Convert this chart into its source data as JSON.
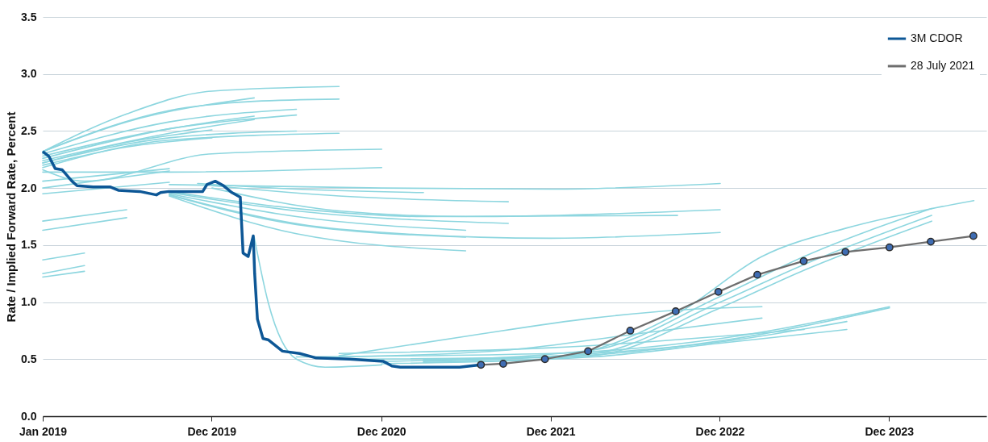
{
  "chart_data": {
    "type": "line",
    "ylabel": "Rate / Implied Forward Rate, Percent",
    "xlim": [
      "2019-01-01",
      "2024-07-28"
    ],
    "xticks": [
      {
        "value": "2019-01-01",
        "label": "Jan 2019"
      },
      {
        "value": "2019-12-31",
        "label": "Dec 2019"
      },
      {
        "value": "2020-12-31",
        "label": "Dec 2020"
      },
      {
        "value": "2021-12-31",
        "label": "Dec 2021"
      },
      {
        "value": "2022-12-31",
        "label": "Dec 2022"
      },
      {
        "value": "2023-12-31",
        "label": "Dec 2023"
      }
    ],
    "ylim": [
      0,
      3.5
    ],
    "yticks": [
      {
        "value": 0,
        "label": "0.0"
      },
      0.5,
      {
        "value": 1,
        "label": "1.0"
      },
      1.5,
      {
        "value": 2,
        "label": "2.0"
      },
      2.5,
      {
        "value": 3,
        "label": "3.0"
      },
      3.5
    ],
    "grid": "y",
    "legend": "top right",
    "series": [
      {
        "color": "#8dd6df",
        "marker": "none",
        "x": [
          "2019-01",
          "2019-07",
          "2020-01",
          "2020-10"
        ],
        "values": [
          2.32,
          2.65,
          2.85,
          2.89
        ]
      },
      {
        "color": "#8dd6df",
        "marker": "none",
        "x": [
          "2019-01",
          "2019-10",
          "2020-04",
          "2020-10"
        ],
        "values": [
          2.32,
          2.68,
          2.76,
          2.78
        ]
      },
      {
        "color": "#8dd6df",
        "marker": "none",
        "x": [
          "2019-01",
          "2019-07",
          "2020-04"
        ],
        "values": [
          2.32,
          2.58,
          2.79
        ]
      },
      {
        "color": "#8dd6df",
        "marker": "none",
        "x": [
          "2019-01",
          "2019-10",
          "2020-07"
        ],
        "values": [
          2.3,
          2.58,
          2.69
        ]
      },
      {
        "color": "#8dd6df",
        "marker": "none",
        "x": [
          "2019-01",
          "2019-10",
          "2020-07"
        ],
        "values": [
          2.28,
          2.52,
          2.64
        ]
      },
      {
        "color": "#8dd6df",
        "marker": "none",
        "x": [
          "2019-01",
          "2019-10",
          "2020-04"
        ],
        "values": [
          2.26,
          2.52,
          2.63
        ]
      },
      {
        "color": "#8dd6df",
        "marker": "none",
        "x": [
          "2019-01",
          "2019-10",
          "2020-04"
        ],
        "values": [
          2.24,
          2.48,
          2.6
        ]
      },
      {
        "color": "#8dd6df",
        "marker": "none",
        "x": [
          "2019-01",
          "2019-07",
          "2020-01"
        ],
        "values": [
          2.22,
          2.4,
          2.51
        ]
      },
      {
        "color": "#8dd6df",
        "marker": "none",
        "x": [
          "2019-01",
          "2019-07",
          "2020-01"
        ],
        "values": [
          2.2,
          2.36,
          2.44
        ]
      },
      {
        "color": "#8dd6df",
        "marker": "none",
        "x": [
          "2019-01",
          "2019-10",
          "2020-07"
        ],
        "values": [
          2.22,
          2.44,
          2.5
        ]
      },
      {
        "color": "#8dd6df",
        "marker": "none",
        "x": [
          "2019-01",
          "2019-10",
          "2020-10"
        ],
        "values": [
          2.18,
          2.42,
          2.48
        ]
      },
      {
        "color": "#8dd6df",
        "marker": "none",
        "x": [
          "2019-01",
          "2019-04",
          "2020-01",
          "2021-01"
        ],
        "values": [
          2.16,
          2.06,
          2.3,
          2.34
        ]
      },
      {
        "color": "#8dd6df",
        "marker": "none",
        "x": [
          "2019-01",
          "2019-10",
          "2021-01"
        ],
        "values": [
          2.14,
          2.14,
          2.18
        ]
      },
      {
        "color": "#8dd6df",
        "marker": "none",
        "x": [
          "2019-01",
          "2019-10"
        ],
        "values": [
          2.06,
          2.17
        ]
      },
      {
        "color": "#8dd6df",
        "marker": "none",
        "x": [
          "2019-01",
          "2019-10"
        ],
        "values": [
          2.0,
          2.15
        ]
      },
      {
        "color": "#8dd6df",
        "marker": "none",
        "x": [
          "2019-01",
          "2019-10"
        ],
        "values": [
          1.95,
          2.05
        ]
      },
      {
        "color": "#8dd6df",
        "marker": "none",
        "x": [
          "2019-01",
          "2019-07"
        ],
        "values": [
          1.71,
          1.81
        ]
      },
      {
        "color": "#8dd6df",
        "marker": "none",
        "x": [
          "2019-01",
          "2019-07"
        ],
        "values": [
          1.63,
          1.74
        ]
      },
      {
        "color": "#8dd6df",
        "marker": "none",
        "x": [
          "2019-01",
          "2019-04"
        ],
        "values": [
          1.37,
          1.43
        ]
      },
      {
        "color": "#8dd6df",
        "marker": "none",
        "x": [
          "2019-01",
          "2019-04"
        ],
        "values": [
          1.25,
          1.32
        ]
      },
      {
        "color": "#8dd6df",
        "marker": "none",
        "x": [
          "2019-01",
          "2019-04"
        ],
        "values": [
          1.22,
          1.27
        ]
      },
      {
        "color": "#8dd6df",
        "marker": "none",
        "x": [
          "2019-10",
          "2021-01",
          "2022-01",
          "2023-01"
        ],
        "values": [
          2.03,
          2.0,
          1.99,
          2.04
        ]
      },
      {
        "color": "#8dd6df",
        "marker": "none",
        "x": [
          "2019-12",
          "2020-07",
          "2021-04"
        ],
        "values": [
          2.04,
          1.99,
          1.96
        ]
      },
      {
        "color": "#8dd6df",
        "marker": "none",
        "x": [
          "2020-01",
          "2020-10",
          "2021-10"
        ],
        "values": [
          2.02,
          1.93,
          1.88
        ]
      },
      {
        "color": "#8dd6df",
        "marker": "none",
        "x": [
          "2020-01",
          "2020-10",
          "2021-07",
          "2023-01"
        ],
        "values": [
          2.0,
          1.8,
          1.75,
          1.81
        ]
      },
      {
        "color": "#8dd6df",
        "marker": "none",
        "x": [
          "2019-10",
          "2020-07",
          "2021-04",
          "2022-10"
        ],
        "values": [
          1.97,
          1.82,
          1.75,
          1.76
        ]
      },
      {
        "color": "#8dd6df",
        "marker": "none",
        "x": [
          "2019-10",
          "2020-07",
          "2021-10"
        ],
        "values": [
          1.96,
          1.8,
          1.69
        ]
      },
      {
        "color": "#8dd6df",
        "marker": "none",
        "x": [
          "2019-10",
          "2020-07",
          "2021-07"
        ],
        "values": [
          1.95,
          1.75,
          1.63
        ]
      },
      {
        "color": "#8dd6df",
        "marker": "none",
        "x": [
          "2019-10",
          "2020-07",
          "2021-07"
        ],
        "values": [
          1.94,
          1.68,
          1.57
        ]
      },
      {
        "color": "#8dd6df",
        "marker": "none",
        "x": [
          "2019-10",
          "2020-10",
          "2022-01",
          "2023-01"
        ],
        "values": [
          1.94,
          1.64,
          1.56,
          1.61
        ]
      },
      {
        "color": "#8dd6df",
        "marker": "none",
        "x": [
          "2019-10",
          "2020-07",
          "2021-07"
        ],
        "values": [
          1.93,
          1.6,
          1.45
        ]
      },
      {
        "color": "#8dd6df",
        "marker": "none",
        "x": [
          "2020-04",
          "2020-05",
          "2020-07",
          "2020-09",
          "2021-01"
        ],
        "values": [
          1.57,
          1.0,
          0.5,
          0.43,
          0.45
        ]
      },
      {
        "color": "#8dd6df",
        "marker": "none",
        "x": [
          "2020-10",
          "2021-07",
          "2022-04",
          "2022-10",
          "2023-04"
        ],
        "values": [
          0.53,
          0.7,
          0.86,
          0.93,
          0.96
        ]
      },
      {
        "color": "#8dd6df",
        "marker": "none",
        "x": [
          "2020-10",
          "2021-10",
          "2022-07",
          "2023-04"
        ],
        "values": [
          0.52,
          0.58,
          0.72,
          0.86
        ]
      },
      {
        "color": "#8dd6df",
        "marker": "none",
        "x": [
          "2020-07",
          "2022-01",
          "2023-01",
          "2024-01"
        ],
        "values": [
          0.52,
          0.55,
          0.68,
          0.96
        ]
      },
      {
        "color": "#8dd6df",
        "marker": "none",
        "x": [
          "2020-10",
          "2022-01",
          "2023-01",
          "2024-01"
        ],
        "values": [
          0.5,
          0.52,
          0.66,
          0.95
        ]
      },
      {
        "color": "#8dd6df",
        "marker": "none",
        "x": [
          "2021-01",
          "2022-04",
          "2023-01",
          "2023-10"
        ],
        "values": [
          0.48,
          0.55,
          0.65,
          0.83
        ]
      },
      {
        "color": "#8dd6df",
        "marker": "none",
        "x": [
          "2021-01",
          "2022-04",
          "2023-01",
          "2023-10"
        ],
        "values": [
          0.46,
          0.52,
          0.64,
          0.76
        ]
      },
      {
        "color": "#8dd6df",
        "marker": "none",
        "x": [
          "2020-10",
          "2022-01",
          "2023-07"
        ],
        "values": [
          0.55,
          0.6,
          0.76
        ]
      },
      {
        "color": "#8dd6df",
        "marker": "none",
        "x": [
          "2021-04",
          "2022-01",
          "2022-10",
          "2023-04",
          "2023-10",
          "2024-04",
          "2024-07"
        ],
        "values": [
          0.5,
          0.52,
          0.9,
          1.4,
          1.65,
          1.82,
          1.89
        ]
      },
      {
        "color": "#8dd6df",
        "marker": "none",
        "x": [
          "2021-04",
          "2022-04",
          "2023-01",
          "2023-07",
          "2024-04"
        ],
        "values": [
          0.49,
          0.58,
          1.05,
          1.4,
          1.82
        ]
      },
      {
        "color": "#8dd6df",
        "marker": "none",
        "x": [
          "2021-04",
          "2022-04",
          "2023-01",
          "2023-07",
          "2024-04"
        ],
        "values": [
          0.48,
          0.55,
          1.0,
          1.33,
          1.76
        ]
      },
      {
        "color": "#8dd6df",
        "marker": "none",
        "x": [
          "2021-04",
          "2022-04",
          "2023-01",
          "2023-07",
          "2024-04"
        ],
        "values": [
          0.47,
          0.53,
          0.95,
          1.28,
          1.71
        ]
      },
      {
        "name": "3M CDOR",
        "color": "#0d5796",
        "marker": "none",
        "x": [
          "2019-01-01",
          "2019-01-14",
          "2019-01-28",
          "2019-02-12",
          "2019-03-05",
          "2019-03-16",
          "2019-04-20",
          "2019-05-26",
          "2019-06-13",
          "2019-07-29",
          "2019-09-03",
          "2019-09-12",
          "2019-09-30",
          "2019-12-12",
          "2019-12-21",
          "2020-01-08",
          "2020-01-26",
          "2020-02-13",
          "2020-03-02",
          "2020-03-08",
          "2020-03-19",
          "2020-03-30",
          "2020-04-02",
          "2020-04-08",
          "2020-04-20",
          "2020-05-01",
          "2020-06-01",
          "2020-07-08",
          "2020-08-13",
          "2020-10-24",
          "2021-01-05",
          "2021-01-23",
          "2021-02-10",
          "2021-06-18",
          "2021-08-03"
        ],
        "values": [
          2.32,
          2.28,
          2.17,
          2.16,
          2.06,
          2.02,
          2.01,
          2.01,
          1.98,
          1.97,
          1.94,
          1.96,
          1.97,
          1.97,
          2.03,
          2.06,
          2.02,
          1.96,
          1.92,
          1.43,
          1.4,
          1.58,
          1.25,
          0.85,
          0.68,
          0.67,
          0.57,
          0.55,
          0.51,
          0.5,
          0.48,
          0.44,
          0.43,
          0.43,
          0.45
        ]
      },
      {
        "name": "28 July 2021",
        "color": "#6e6e6e",
        "marker": "circle",
        "x": [
          "2021-08-03",
          "2021-09-20",
          "2021-12-19",
          "2022-03-22",
          "2022-06-21",
          "2022-09-27",
          "2022-12-28",
          "2023-03-22",
          "2023-06-30",
          "2023-09-28",
          "2024-01-01",
          "2024-03-30",
          "2024-06-30"
        ],
        "values": [
          0.45,
          0.46,
          0.5,
          0.57,
          0.75,
          0.92,
          1.09,
          1.24,
          1.36,
          1.44,
          1.48,
          1.53,
          1.58
        ]
      }
    ]
  }
}
